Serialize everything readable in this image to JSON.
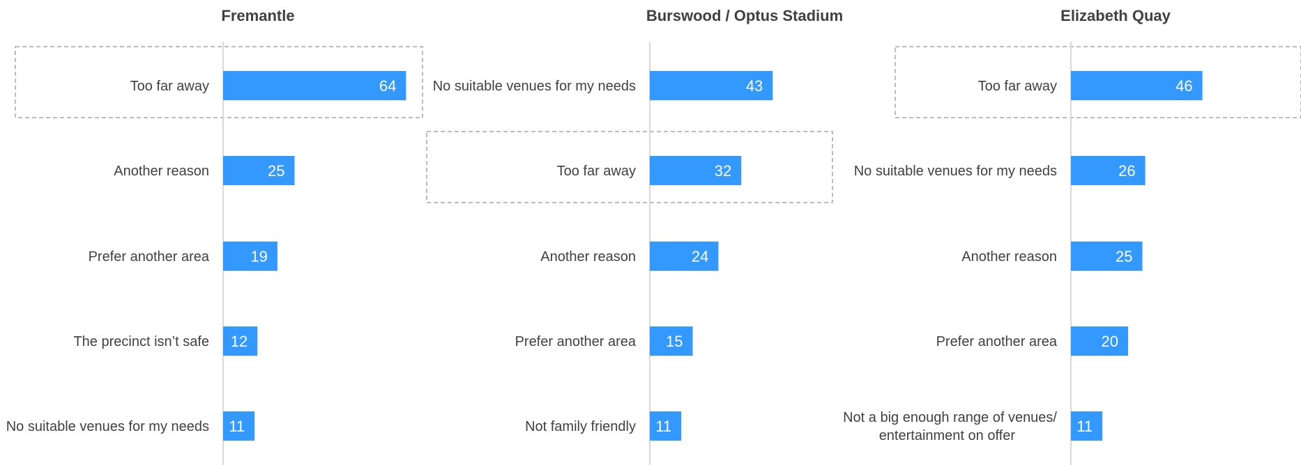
{
  "colors": {
    "bar": "#3399ff",
    "value_text": "#ffffff",
    "label_text": "#404040",
    "axis": "#d9d9d9",
    "highlight_border": "#a6a6a6"
  },
  "chart_data": [
    {
      "type": "bar",
      "orientation": "horizontal",
      "title": "Fremantle",
      "categories": [
        "Too far away",
        "Another reason",
        "Prefer another area",
        "The precinct isn’t safe",
        "No suitable venues for my needs"
      ],
      "values": [
        64,
        25,
        19,
        12,
        11
      ],
      "highlighted": [
        "Too far away"
      ]
    },
    {
      "type": "bar",
      "orientation": "horizontal",
      "title": "Burswood / Optus Stadium",
      "categories": [
        "No suitable venues for my needs",
        "Too far away",
        "Another reason",
        "Prefer another area",
        "Not family friendly"
      ],
      "values": [
        43,
        32,
        24,
        15,
        11
      ],
      "highlighted": [
        "Too far away"
      ]
    },
    {
      "type": "bar",
      "orientation": "horizontal",
      "title": "Elizabeth Quay",
      "categories": [
        "Too far away",
        "No suitable venues for my needs",
        "Another reason",
        "Prefer another area",
        "Not a big enough range of venues/\nentertainment on offer"
      ],
      "values": [
        46,
        26,
        25,
        20,
        11
      ],
      "highlighted": [
        "Too far away"
      ]
    }
  ]
}
